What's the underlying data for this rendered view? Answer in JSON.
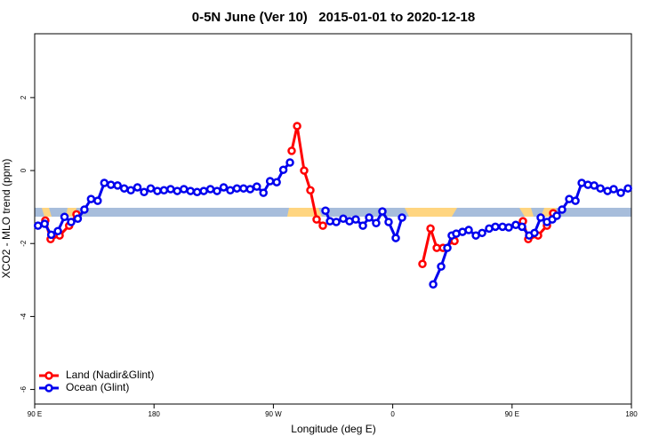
{
  "chart_data": {
    "type": "line",
    "title": "0-5N June (Ver 10)   2015-01-01 to 2020-12-18",
    "xlabel": "Longitude (deg E)",
    "ylabel": "XCO2 - MLO trend (ppm)",
    "xlim": [
      90,
      540
    ],
    "ylim": [
      -6.4,
      3.75
    ],
    "xticks": [
      {
        "value": 90,
        "label": "90 E"
      },
      {
        "value": 180,
        "label": "180"
      },
      {
        "value": 270,
        "label": "90 W"
      },
      {
        "value": 360,
        "label": "0"
      },
      {
        "value": 450,
        "label": "90 E"
      },
      {
        "value": 540,
        "label": "180"
      }
    ],
    "yticks": [
      2,
      0,
      -2,
      -4,
      -6
    ],
    "legend": "bottomleft",
    "series": [
      {
        "name": "Land (Nadir&Glint)",
        "color": "#ff0000",
        "x": [
          98,
          102,
          108.8,
          116,
          121.5,
          200,
          283.8,
          287.9,
          293.2,
          297.9,
          302.6,
          307.3,
          350,
          382.4,
          388.5,
          393.2,
          397.9,
          406.6,
          430,
          458.2,
          462.2,
          469.6,
          476.3,
          481
        ],
        "values": [
          -1.37,
          -1.88,
          -1.78,
          -1.51,
          -1.2,
          null,
          0.54,
          1.22,
          0,
          -0.54,
          -1.34,
          -1.51,
          null,
          -2.56,
          -1.59,
          -2.12,
          -2.12,
          -1.93,
          null,
          -1.39,
          -1.88,
          -1.78,
          -1.51,
          -1.17
        ]
      },
      {
        "name": "Ocean (Glint)",
        "color": "#0000ee",
        "x": [
          92.5,
          97.5,
          102.5,
          107.5,
          112.5,
          117.5,
          122.5,
          127.5,
          132.5,
          137.5,
          142.5,
          147.5,
          152.5,
          157.5,
          162.5,
          167.5,
          172.5,
          177.5,
          182.5,
          187.5,
          192.5,
          197.5,
          202.5,
          207.5,
          212.5,
          217.5,
          222.5,
          227.5,
          232.5,
          237.5,
          242.5,
          247.5,
          252.5,
          257.5,
          262.5,
          267.5,
          272.5,
          277.5,
          282.5,
          296,
          309.3,
          312.7,
          317.4,
          322.7,
          327.4,
          332.1,
          337.5,
          342.2,
          347.5,
          352.2,
          356.9,
          362.3,
          367,
          380,
          390.5,
          396.5,
          401.2,
          404.5,
          407.9,
          412.6,
          417.3,
          422.7,
          427.4,
          432.7,
          437.4,
          442.8,
          447.5,
          452.8,
          457.5,
          462.9,
          466.9,
          471.6,
          476.3,
          480.3,
          483.7,
          487.7,
          493.1,
          497.8,
          502.5,
          507.2,
          511.9,
          516.6,
          522,
          526.6,
          532,
          537.4
        ],
        "values": [
          -1.51,
          -1.46,
          -1.76,
          -1.66,
          -1.27,
          -1.41,
          -1.32,
          -1.07,
          -0.78,
          -0.83,
          -0.34,
          -0.39,
          -0.41,
          -0.49,
          -0.54,
          -0.46,
          -0.59,
          -0.49,
          -0.56,
          -0.54,
          -0.51,
          -0.56,
          -0.51,
          -0.56,
          -0.59,
          -0.56,
          -0.51,
          -0.56,
          -0.46,
          -0.54,
          -0.49,
          -0.49,
          -0.51,
          -0.44,
          -0.61,
          -0.29,
          -0.32,
          0.02,
          0.22,
          null,
          -1.1,
          -1.39,
          -1.41,
          -1.32,
          -1.39,
          -1.34,
          -1.51,
          -1.29,
          -1.44,
          -1.12,
          -1.41,
          -1.85,
          -1.29,
          null,
          -3.12,
          -2.63,
          -2.12,
          -1.78,
          -1.73,
          -1.68,
          -1.63,
          -1.78,
          -1.71,
          -1.59,
          -1.54,
          -1.54,
          -1.56,
          -1.49,
          -1.54,
          -1.78,
          -1.71,
          -1.29,
          -1.41,
          -1.34,
          -1.24,
          -1.07,
          -0.78,
          -0.83,
          -0.34,
          -0.39,
          -0.41,
          -0.49,
          -0.56,
          -0.51,
          -0.61,
          -0.49
        ]
      }
    ]
  }
}
